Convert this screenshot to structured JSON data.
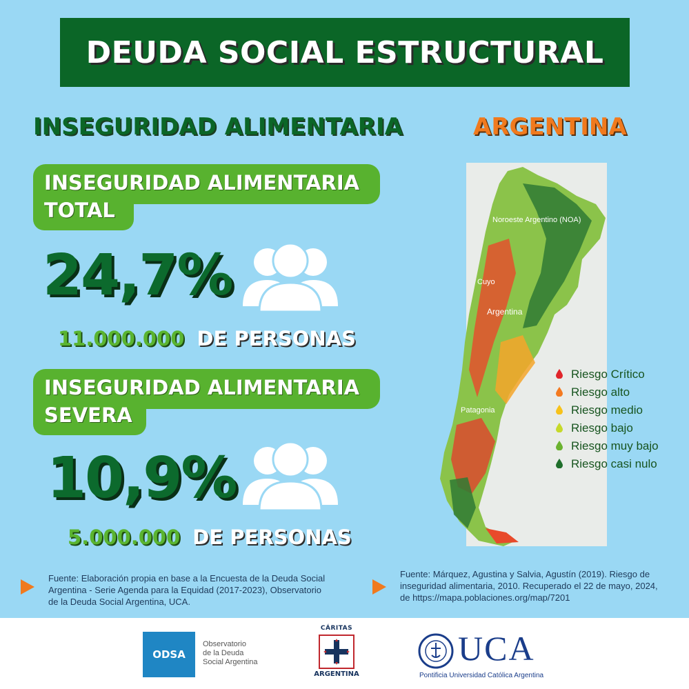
{
  "header": {
    "title": "DEUDA SOCIAL ESTRUCTURAL"
  },
  "subheader": {
    "left": "INSEGURIDAD ALIMENTARIA",
    "right": "ARGENTINA"
  },
  "total": {
    "label_line1": "INSEGURIDAD ALIMENTARIA",
    "label_line2": "TOTAL",
    "percent": "24,7%",
    "count": "11.000.000",
    "unit": "DE PERSONAS"
  },
  "severe": {
    "label_line1": "INSEGURIDAD ALIMENTARIA",
    "label_line2": "SEVERA",
    "percent": "10,9%",
    "count": "5.000.000",
    "unit": "DE PERSONAS"
  },
  "map": {
    "regions": [
      "Noroeste Argentino (NOA)",
      "Cuyo",
      "Argentina",
      "Patagonia"
    ]
  },
  "legend": [
    {
      "label": "Riesgo Crítico",
      "color": "#e0262b"
    },
    {
      "label": "Riesgo alto",
      "color": "#f47a20"
    },
    {
      "label": "Riesgo medio",
      "color": "#f7c21a"
    },
    {
      "label": "Riesgo bajo",
      "color": "#c6d92a"
    },
    {
      "label": "Riesgo muy bajo",
      "color": "#6ab22f"
    },
    {
      "label": "Riesgo casi nulo",
      "color": "#1f6e2b"
    }
  ],
  "sources": {
    "left": "Fuente: Elaboración propia en base a la Encuesta de la Deuda Social Argentina - Serie Agenda para la Equidad (2017-2023), Observatorio de la Deuda Social Argentina, UCA.",
    "right": "Fuente: Márquez, Agustina y Salvia, Agustín (2019). Riesgo de inseguridad alimentaria, 2010. Recuperado el 22 de mayo, 2024, de https://mapa.poblaciones.org/map/7201"
  },
  "footer": {
    "odsa_box": "ODSA",
    "odsa_line1": "Observatorio",
    "odsa_line2": "de la Deuda",
    "odsa_line3": "Social Argentina",
    "caritas_top": "CÁRITAS",
    "caritas_bottom": "ARGENTINA",
    "uca": "UCA",
    "uca_sub": "Pontificia Universidad Católica Argentina"
  },
  "colors": {
    "dark_green": "#0b6627",
    "light_green": "#58b22f",
    "orange": "#f07a1e",
    "background": "#9ad8f4"
  }
}
